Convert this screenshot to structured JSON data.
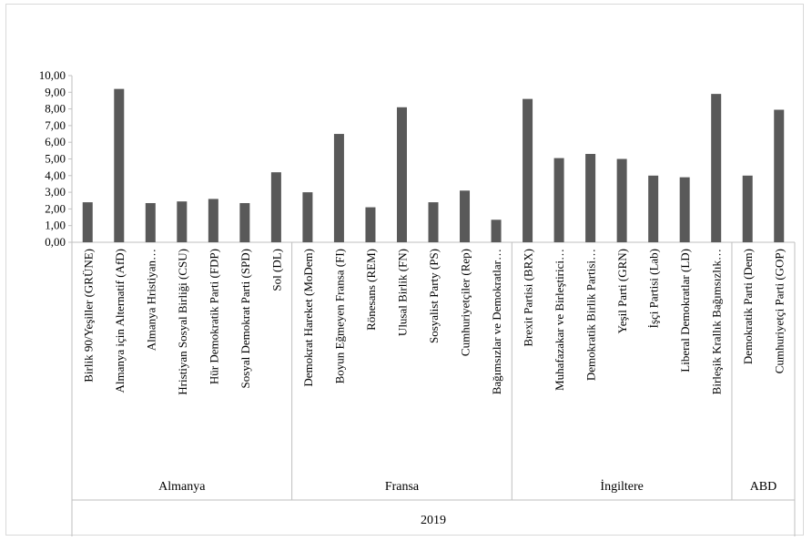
{
  "chart_data": {
    "type": "bar",
    "title": "",
    "xlabel": "",
    "ylabel": "",
    "ylim": [
      0,
      10
    ],
    "ytick_step": 1,
    "ytick_labels": [
      "0,00",
      "1,00",
      "2,00",
      "3,00",
      "4,00",
      "5,00",
      "6,00",
      "7,00",
      "8,00",
      "9,00",
      "10,00"
    ],
    "grid": false,
    "legend": "none",
    "bar_color": "#595959",
    "categories": [
      "Birlik 90/Yeşiller (GRÜNE)",
      "Almanya için Alternatif (AfD)",
      "Almanya Hristiyan…",
      "Hristiyan Sosyal Birliği (CSU)",
      "Hür Demokratik Parti (FDP)",
      "Sosyal Demokrat Parti (SPD)",
      "Sol (DL)",
      "Demokrat Hareket (MoDem)",
      "Boyun Eğmeyen Fransa (FI)",
      "Rönesans (REM)",
      "Ulusal Birlik (FN)",
      "Sosyalist Party (PS)",
      "Cumhuriyetçiler (Rep)",
      "Bağımsızlar ve Demokratlar…",
      "Brexit Partisi (BRX)",
      "Muhafazakar ve Birleştirici…",
      "Demokratik Birlik Partisi…",
      "Yeşil Parti (GRN)",
      "İşçi Partisi (Lab)",
      "Liberal Demokratlar (LD)",
      "Birleşik Krallık Bağımsızlık…",
      "Demokratik Parti (Dem)",
      "Cumhuriyetçi Parti (GOP)"
    ],
    "values": [
      2.4,
      9.2,
      2.35,
      2.45,
      2.6,
      2.35,
      4.2,
      3.0,
      6.5,
      2.1,
      8.1,
      2.4,
      3.1,
      1.35,
      8.6,
      5.05,
      5.3,
      5.0,
      4.0,
      3.9,
      8.9,
      4.0,
      7.95
    ],
    "groups": [
      {
        "label": "Almanya",
        "start": 0,
        "count": 7
      },
      {
        "label": "Fransa",
        "start": 7,
        "count": 7
      },
      {
        "label": "İngiltere",
        "start": 14,
        "count": 7
      },
      {
        "label": "ABD",
        "start": 21,
        "count": 2
      }
    ],
    "year_label": "2019"
  }
}
